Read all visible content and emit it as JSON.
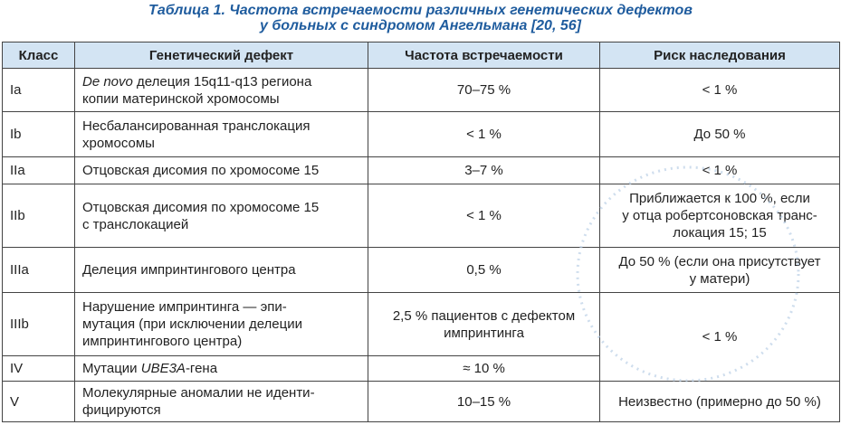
{
  "title": [
    "Таблица 1. Частота встречаемости различных генетических дефектов",
    "у больных с синдромом Ангельмана [20, 56]"
  ],
  "table": {
    "header": [
      "Класс",
      "Генетический дефект",
      "Частота встречаемости",
      "Риск наследования"
    ],
    "rows": [
      {
        "class": "Ia",
        "defect": {
          "italic": "De novo",
          "text": " делеция 15q11-q13 региона\nкопии материнской хромосомы"
        },
        "frequency": "70–75 %",
        "risk": "< 1 %"
      },
      {
        "class": "Ib",
        "defect": "Несбалансированная транслокация\nхромосомы",
        "frequency": "< 1 %",
        "risk": "До 50 %"
      },
      {
        "class": "IIa",
        "defect": "Отцовская дисомия по хромосоме 15",
        "frequency": "3–7 %",
        "risk": "< 1 %"
      },
      {
        "class": "IIb",
        "defect": "Отцовская дисомия по хромосоме 15\nс транслокацией",
        "frequency": "< 1 %",
        "risk": "Приближается к 100 %, если\nу отца робертсоновская транс-\nлокация 15; 15"
      },
      {
        "class": "IIIa",
        "defect": "Делеция импринтингового центра",
        "frequency": "0,5 %",
        "risk": "До 50 % (если она присутствует\nу матери)"
      },
      {
        "class": "IIIb",
        "defect": "Нарушение импринтинга — эпи-\nмутация (при исключении делеции\nимпринтингового центра)",
        "frequency": "2,5 % пациентов с дефектом\nимпринтинга",
        "risk": "< 1 %"
      },
      {
        "class": "IV",
        "defect": {
          "text": "Мутации ",
          "italic": "UBE3A",
          "suffix": "-гена"
        },
        "frequency": "≈ 10 %"
      },
      {
        "class": "V",
        "defect": "Молекулярные аномалии не иденти-\nфицируются",
        "frequency": "10–15 %",
        "risk": "Неизвестно (примерно до 50 %)"
      }
    ]
  }
}
